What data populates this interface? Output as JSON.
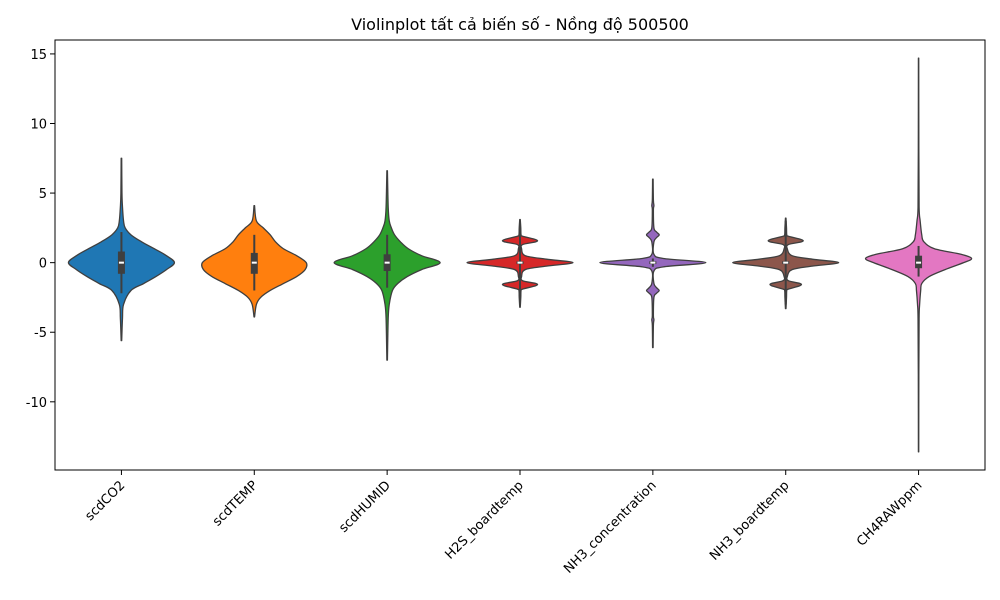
{
  "chart_data": {
    "type": "violin",
    "title": "Violinplot tất cả biến số - Nồng độ 500500",
    "xlabel": "",
    "ylabel": "",
    "ylim": [
      -14.9,
      16.0
    ],
    "yticks": [
      -10,
      -5,
      0,
      5,
      10,
      15
    ],
    "grid": false,
    "categories": [
      "scdCO2",
      "scdTEMP",
      "scdHUMID",
      "H2S_boardtemp",
      "NH3_concentration",
      "NH3_boardtemp",
      "CH4RAWppm"
    ],
    "series": [
      {
        "color": "#1f77b4",
        "min": -5.6,
        "max": 7.5,
        "q1": -0.8,
        "median": 0.0,
        "q3": 0.8,
        "whisker_low": -2.2,
        "whisker_high": 2.2,
        "density": [
          [
            -5.6,
            0.005
          ],
          [
            -4.0,
            0.02
          ],
          [
            -3.0,
            0.04
          ],
          [
            -2.0,
            0.18
          ],
          [
            -1.5,
            0.42
          ],
          [
            -1.0,
            0.65
          ],
          [
            -0.5,
            0.85
          ],
          [
            0,
            1.0
          ],
          [
            0.5,
            0.85
          ],
          [
            1.0,
            0.62
          ],
          [
            1.5,
            0.38
          ],
          [
            2.0,
            0.18
          ],
          [
            2.5,
            0.07
          ],
          [
            3.0,
            0.04
          ],
          [
            4.0,
            0.02
          ],
          [
            5.0,
            0.01
          ],
          [
            7.5,
            0.005
          ]
        ]
      },
      {
        "color": "#ff7f0e",
        "min": -3.9,
        "max": 4.1,
        "q1": -0.8,
        "median": 0.0,
        "q3": 0.7,
        "whisker_low": -2.0,
        "whisker_high": 2.0,
        "density": [
          [
            -3.9,
            0.005
          ],
          [
            -3.0,
            0.04
          ],
          [
            -2.5,
            0.12
          ],
          [
            -2.0,
            0.3
          ],
          [
            -1.5,
            0.55
          ],
          [
            -1.0,
            0.8
          ],
          [
            -0.5,
            0.96
          ],
          [
            0,
            0.98
          ],
          [
            0.5,
            0.8
          ],
          [
            1.0,
            0.55
          ],
          [
            1.5,
            0.4
          ],
          [
            2.0,
            0.3
          ],
          [
            2.5,
            0.17
          ],
          [
            3.0,
            0.04
          ],
          [
            4.1,
            0.005
          ]
        ]
      },
      {
        "color": "#2ca02c",
        "min": -7.0,
        "max": 6.6,
        "q1": -0.6,
        "median": 0.0,
        "q3": 0.6,
        "whisker_low": -1.8,
        "whisker_high": 2.0,
        "density": [
          [
            -7.0,
            0.005
          ],
          [
            -4.0,
            0.02
          ],
          [
            -3.0,
            0.04
          ],
          [
            -2.0,
            0.1
          ],
          [
            -1.5,
            0.2
          ],
          [
            -1.0,
            0.38
          ],
          [
            -0.5,
            0.65
          ],
          [
            0,
            1.0
          ],
          [
            0.5,
            0.65
          ],
          [
            1.0,
            0.4
          ],
          [
            1.5,
            0.25
          ],
          [
            2.0,
            0.14
          ],
          [
            2.5,
            0.08
          ],
          [
            3.0,
            0.04
          ],
          [
            4.0,
            0.02
          ],
          [
            6.6,
            0.005
          ]
        ]
      },
      {
        "color": "#d62728",
        "min": -3.2,
        "max": 3.1,
        "q1": -0.1,
        "median": 0.0,
        "q3": 0.1,
        "whisker_low": -3.0,
        "whisker_high": 3.0,
        "density": [
          [
            -3.2,
            0.005
          ],
          [
            -2.5,
            0.015
          ],
          [
            -2.0,
            0.02
          ],
          [
            -1.9,
            0.05
          ],
          [
            -1.65,
            0.3
          ],
          [
            -1.5,
            0.3
          ],
          [
            -1.3,
            0.05
          ],
          [
            -1.0,
            0.03
          ],
          [
            -0.5,
            0.1
          ],
          [
            -0.25,
            0.5
          ],
          [
            0,
            1.0
          ],
          [
            0.25,
            0.5
          ],
          [
            0.5,
            0.1
          ],
          [
            1.0,
            0.03
          ],
          [
            1.3,
            0.05
          ],
          [
            1.5,
            0.3
          ],
          [
            1.65,
            0.3
          ],
          [
            1.9,
            0.05
          ],
          [
            2.0,
            0.02
          ],
          [
            2.5,
            0.015
          ],
          [
            3.1,
            0.005
          ]
        ]
      },
      {
        "color": "#9467bd",
        "min": -6.1,
        "max": 6.0,
        "q1": -0.1,
        "median": 0.0,
        "q3": 0.1,
        "whisker_low": -0.3,
        "whisker_high": 0.3,
        "density": [
          [
            -6.1,
            0.005
          ],
          [
            -4.5,
            0.01
          ],
          [
            -4.1,
            0.02
          ],
          [
            -3.8,
            0.01
          ],
          [
            -2.5,
            0.02
          ],
          [
            -2.2,
            0.07
          ],
          [
            -2.0,
            0.12
          ],
          [
            -1.8,
            0.07
          ],
          [
            -1.5,
            0.02
          ],
          [
            -0.6,
            0.02
          ],
          [
            -0.3,
            0.2
          ],
          [
            0,
            1.0
          ],
          [
            0.3,
            0.2
          ],
          [
            0.6,
            0.02
          ],
          [
            1.5,
            0.02
          ],
          [
            1.8,
            0.07
          ],
          [
            2.0,
            0.12
          ],
          [
            2.2,
            0.07
          ],
          [
            2.5,
            0.02
          ],
          [
            3.8,
            0.01
          ],
          [
            4.1,
            0.02
          ],
          [
            4.5,
            0.01
          ],
          [
            6.0,
            0.005
          ]
        ]
      },
      {
        "color": "#8c564b",
        "min": -3.3,
        "max": 3.2,
        "q1": -0.1,
        "median": 0.0,
        "q3": 0.1,
        "whisker_low": -3.0,
        "whisker_high": 3.0,
        "density": [
          [
            -3.3,
            0.005
          ],
          [
            -2.5,
            0.015
          ],
          [
            -2.0,
            0.02
          ],
          [
            -1.9,
            0.05
          ],
          [
            -1.65,
            0.27
          ],
          [
            -1.5,
            0.27
          ],
          [
            -1.3,
            0.05
          ],
          [
            -1.0,
            0.03
          ],
          [
            -0.5,
            0.12
          ],
          [
            -0.25,
            0.5
          ],
          [
            0,
            1.0
          ],
          [
            0.25,
            0.5
          ],
          [
            0.5,
            0.12
          ],
          [
            1.0,
            0.03
          ],
          [
            1.3,
            0.05
          ],
          [
            1.5,
            0.3
          ],
          [
            1.65,
            0.3
          ],
          [
            1.9,
            0.05
          ],
          [
            2.0,
            0.02
          ],
          [
            2.5,
            0.015
          ],
          [
            3.2,
            0.005
          ]
        ]
      },
      {
        "color": "#e377c2",
        "min": -13.6,
        "max": 14.7,
        "q1": -0.4,
        "median": 0.0,
        "q3": 0.5,
        "whisker_low": -1.0,
        "whisker_high": 1.2,
        "density": [
          [
            -13.6,
            0.003
          ],
          [
            -8.0,
            0.005
          ],
          [
            -4.0,
            0.01
          ],
          [
            -3.0,
            0.02
          ],
          [
            -2.0,
            0.04
          ],
          [
            -1.5,
            0.06
          ],
          [
            -1.0,
            0.2
          ],
          [
            -0.5,
            0.5
          ],
          [
            0,
            0.85
          ],
          [
            0.3,
            1.0
          ],
          [
            0.6,
            0.8
          ],
          [
            1.0,
            0.3
          ],
          [
            1.5,
            0.1
          ],
          [
            2.0,
            0.06
          ],
          [
            3.0,
            0.03
          ],
          [
            4.0,
            0.01
          ],
          [
            8.0,
            0.005
          ],
          [
            14.7,
            0.003
          ]
        ]
      }
    ]
  }
}
